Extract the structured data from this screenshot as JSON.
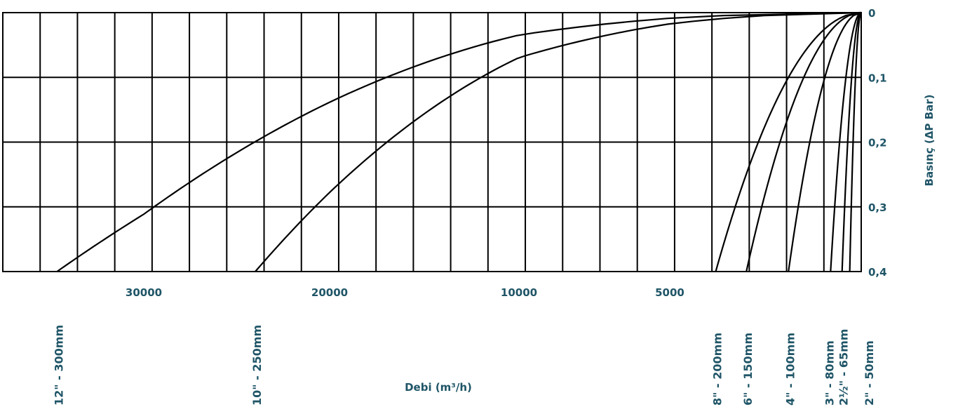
{
  "chart_data": {
    "type": "line",
    "title": "",
    "xlabel": "Debi (m³/h)",
    "ylabel": "Basınç (ΔP Bar)",
    "y_ticks": [
      "0",
      "0,1",
      "0,2",
      "0,3",
      "0,4"
    ],
    "y_values": [
      0,
      0.1,
      0.2,
      0.3,
      0.4
    ],
    "x_ticks": [
      {
        "label": "30000",
        "value": 30000
      },
      {
        "label": "20000",
        "value": 20000
      },
      {
        "label": "10000",
        "value": 10000
      },
      {
        "label": "5000",
        "value": 5000
      }
    ],
    "ylim": [
      0,
      0.4
    ],
    "x_axis_reversed": true,
    "grid": true,
    "legend": "none",
    "series": [
      {
        "name": "12\" - 300mm",
        "max_flow": 34000
      },
      {
        "name": "10\" - 250mm",
        "max_flow": 24000
      },
      {
        "name": "8\" - 200mm",
        "max_flow": 3800
      },
      {
        "name": "6\" - 150mm",
        "max_flow": 3000
      },
      {
        "name": "4\" - 100mm",
        "max_flow": 1900
      },
      {
        "name": "3\" - 80mm",
        "max_flow": 800
      },
      {
        "name": "2½\" - 65mm",
        "max_flow": 500
      },
      {
        "name": "2\" - 50mm",
        "max_flow": 300
      }
    ]
  }
}
